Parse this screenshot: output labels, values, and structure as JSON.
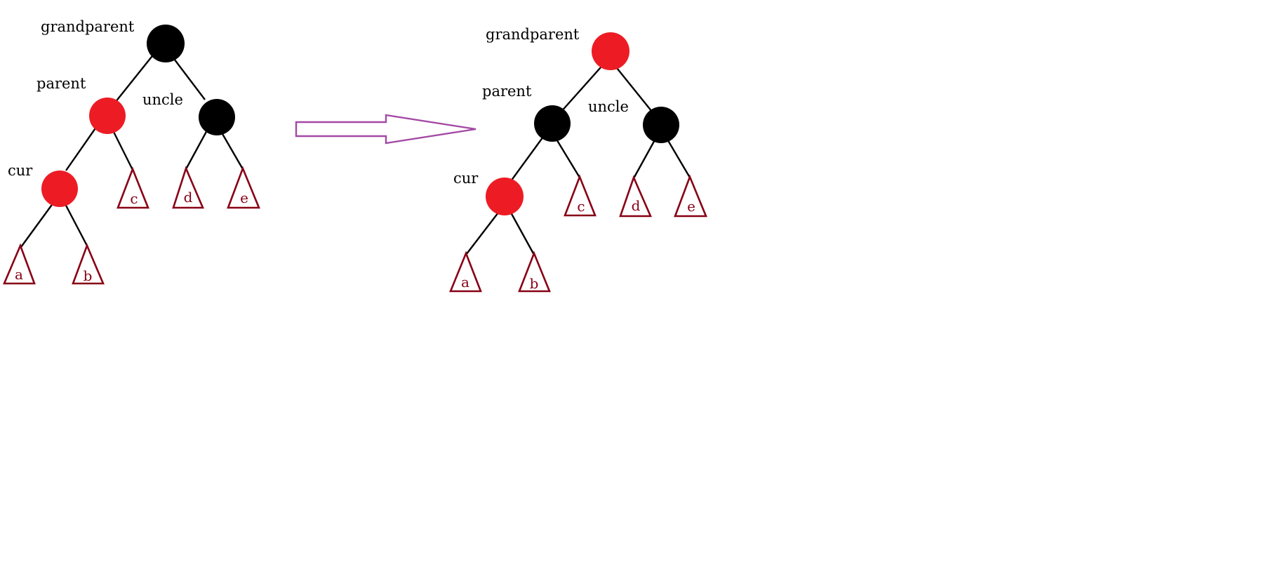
{
  "colors": {
    "red_node": "#ed1c24",
    "black_node": "#000000",
    "subtree_outline": "#880015",
    "subtree_text": "#880015",
    "arrow": "#a349a4",
    "edge": "#000000"
  },
  "before": {
    "labels": {
      "grandparent": "grandparent",
      "parent": "parent",
      "uncle": "uncle",
      "cur": "cur"
    },
    "node_colors": {
      "grandparent": "black",
      "parent": "red",
      "uncle": "black",
      "cur": "red"
    },
    "subtrees": [
      "a",
      "b",
      "c",
      "d",
      "e"
    ]
  },
  "transition": {
    "icon": "right-arrow-icon"
  },
  "after": {
    "labels": {
      "grandparent": "grandparent",
      "parent": "parent",
      "uncle": "uncle",
      "cur": "cur"
    },
    "node_colors": {
      "grandparent": "red",
      "parent": "black",
      "uncle": "black",
      "cur": "red"
    },
    "subtrees": [
      "a",
      "b",
      "c",
      "d",
      "e"
    ]
  }
}
